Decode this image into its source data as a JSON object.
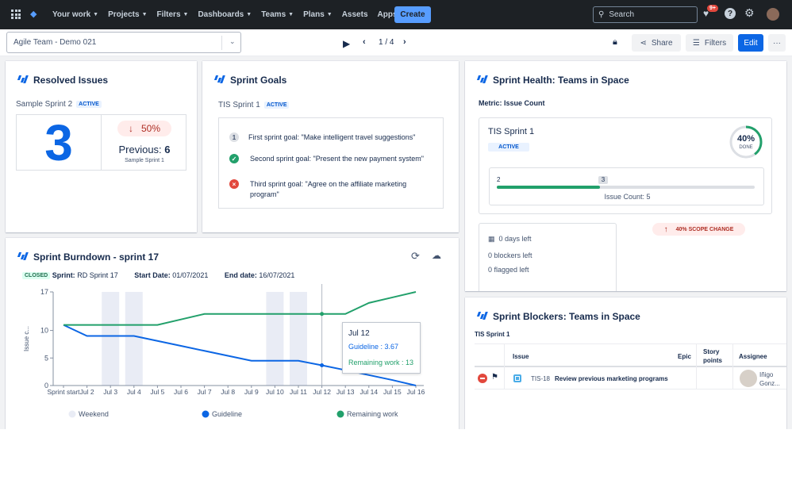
{
  "topnav": {
    "items": [
      "Your work",
      "Projects",
      "Filters",
      "Dashboards",
      "Teams",
      "Plans",
      "Assets",
      "Apps"
    ],
    "has_caret": [
      true,
      true,
      true,
      true,
      true,
      true,
      false,
      true
    ],
    "create_label": "Create",
    "search_placeholder": "Search",
    "notif_badge": "9+"
  },
  "subbar": {
    "dashboard_name": "Agile Team - Demo 021",
    "pager": "1 / 4",
    "share_label": "Share",
    "filters_label": "Filters",
    "edit_label": "Edit",
    "more_label": "···"
  },
  "resolved": {
    "title": "Resolved Issues",
    "sprint": "Sample Sprint 2",
    "status": "ACTIVE",
    "count": "3",
    "change": "50%",
    "previous_label": "Previous:",
    "previous_value": "6",
    "previous_sprint": "Sample Sprint 1"
  },
  "goals": {
    "title": "Sprint Goals",
    "sprint": "TIS Sprint 1",
    "status": "ACTIVE",
    "items": [
      {
        "marker": "1",
        "state": "number",
        "text": "First sprint goal: \"Make intelligent travel suggestions\""
      },
      {
        "marker": "✓",
        "state": "done",
        "text": "Second sprint goal: \"Present the new payment system\""
      },
      {
        "marker": "×",
        "state": "failed",
        "text": "Third sprint goal: \"Agree on the affiliate marketing program\""
      }
    ]
  },
  "health": {
    "title": "Sprint Health: Teams in Space",
    "metric": "Metric: Issue Count",
    "sprint": "TIS Sprint 1",
    "status": "ACTIVE",
    "done_pct_label": "40%",
    "done_label": "DONE",
    "done_fraction": 0.4,
    "bar_left": "2",
    "bar_right": "3",
    "bar_fraction": 0.4,
    "issue_count": "Issue Count: 5",
    "days_left": "0 days left",
    "blockers_left": "0 blockers left",
    "flagged_left": "0 flagged left",
    "scope_change": "40% SCOPE CHANGE"
  },
  "burndown": {
    "title": "Sprint Burndown - sprint 17",
    "status": "CLOSED",
    "sprint_label": "Sprint:",
    "sprint_value": "RD Sprint 17",
    "start_label": "Start Date:",
    "start_value": "01/07/2021",
    "end_label": "End date:",
    "end_value": "16/07/2021",
    "tooltip": {
      "date": "Jul 12",
      "guideline": "Guideline : 3.67",
      "remaining": "Remaining work : 13"
    }
  },
  "chart_data": {
    "type": "line",
    "x": [
      "Sprint start",
      "Jul 2",
      "Jul 3",
      "Jul 4",
      "Jul 5",
      "Jul 6",
      "Jul 7",
      "Jul 8",
      "Jul 9",
      "Jul 10",
      "Jul 11",
      "Jul 12",
      "Jul 13",
      "Jul 14",
      "Jul 15",
      "Jul 16"
    ],
    "ylabel": "Issue c...",
    "ylim": [
      0,
      17
    ],
    "yticks": [
      0,
      5,
      10,
      17
    ],
    "weekend_indices": [
      2,
      3,
      9,
      10
    ],
    "series": [
      {
        "name": "Guideline",
        "color": "#0c66e4",
        "values": [
          11,
          9,
          9,
          9,
          8.1,
          7.2,
          6.3,
          5.4,
          4.5,
          4.5,
          4.5,
          3.67,
          2.8,
          1.9,
          1.0,
          0
        ]
      },
      {
        "name": "Remaining work",
        "color": "#22a06b",
        "values": [
          11,
          11,
          11,
          11,
          11,
          12,
          13,
          13,
          13,
          13,
          13,
          13,
          13,
          15,
          16,
          17
        ]
      }
    ],
    "legend": [
      "Weekend",
      "Guideline",
      "Remaining work"
    ],
    "legend_placement": "bottom",
    "weekend_color": "#e9ecf5",
    "highlight_index": 11
  },
  "blockers": {
    "title": "Sprint Blockers: Teams in Space",
    "sprint": "TIS Sprint 1",
    "columns": [
      "Issue",
      "Epic",
      "Story points",
      "Assignee"
    ],
    "rows": [
      {
        "key": "TIS-18",
        "summary": "Review previous marketing programs",
        "epic": "",
        "points": "",
        "assignee": "Iñigo Gonz..."
      }
    ]
  }
}
